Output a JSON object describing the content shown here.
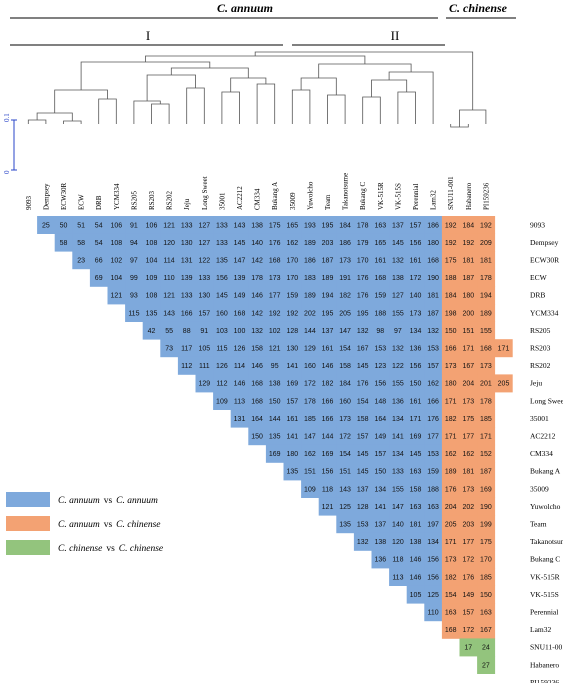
{
  "groups": {
    "annuum": "C. annuum",
    "chinense": "C. chinense",
    "clade1": "I",
    "clade2": "II"
  },
  "scale_bar": {
    "top_label": "0.1",
    "bottom_label": "0"
  },
  "accessions": [
    "9093",
    "Dempsey",
    "ECW30R",
    "ECW",
    "DRB",
    "YCM334",
    "RS205",
    "RS203",
    "RS202",
    "Jeju",
    "Long Sweet",
    "35001",
    "AC2212",
    "CM334",
    "Bukang A",
    "35009",
    "Yuwolcho",
    "Team",
    "Takanotsume",
    "Bukang C",
    "VK-515R",
    "VK-515S",
    "Perennial",
    "Lam32",
    "SNU11-001",
    "Habanero",
    "PI159236"
  ],
  "distance_rows": [
    [
      25,
      50,
      51,
      54,
      106,
      91,
      106,
      121,
      133,
      127,
      133,
      143,
      138,
      175,
      165,
      193,
      195,
      184,
      178,
      163,
      137,
      157,
      186,
      192,
      184,
      192
    ],
    [
      58,
      58,
      54,
      108,
      94,
      108,
      120,
      130,
      127,
      133,
      145,
      140,
      176,
      162,
      189,
      203,
      186,
      179,
      165,
      145,
      156,
      180,
      192,
      192,
      209
    ],
    [
      23,
      66,
      102,
      97,
      104,
      114,
      131,
      122,
      135,
      147,
      142,
      168,
      170,
      186,
      187,
      173,
      170,
      161,
      132,
      161,
      168,
      175,
      181,
      181
    ],
    [
      69,
      104,
      99,
      109,
      110,
      139,
      133,
      156,
      139,
      178,
      173,
      170,
      183,
      189,
      191,
      176,
      168,
      138,
      172,
      190,
      188,
      187,
      178
    ],
    [
      121,
      93,
      108,
      121,
      133,
      130,
      145,
      149,
      146,
      177,
      159,
      189,
      194,
      182,
      176,
      159,
      127,
      140,
      181,
      184,
      180,
      194
    ],
    [
      115,
      135,
      143,
      166,
      157,
      160,
      168,
      142,
      192,
      192,
      202,
      195,
      205,
      195,
      188,
      155,
      173,
      187,
      198,
      200,
      189
    ],
    [
      42,
      55,
      88,
      91,
      103,
      100,
      132,
      102,
      128,
      144,
      137,
      147,
      132,
      98,
      97,
      134,
      132,
      150,
      151,
      155
    ],
    [
      73,
      117,
      105,
      115,
      126,
      158,
      121,
      130,
      129,
      161,
      154,
      167,
      153,
      132,
      136,
      153,
      166,
      171,
      168,
      171
    ],
    [
      112,
      111,
      126,
      114,
      146,
      95,
      141,
      160,
      146,
      158,
      145,
      123,
      122,
      156,
      157,
      173,
      167,
      173
    ],
    [
      129,
      112,
      146,
      168,
      138,
      169,
      172,
      182,
      184,
      176,
      156,
      155,
      150,
      162,
      180,
      204,
      201,
      205
    ],
    [
      109,
      113,
      168,
      150,
      157,
      178,
      166,
      160,
      154,
      148,
      136,
      161,
      166,
      171,
      173,
      178
    ],
    [
      131,
      164,
      144,
      161,
      185,
      166,
      173,
      158,
      164,
      134,
      171,
      176,
      182,
      175,
      185
    ],
    [
      150,
      135,
      141,
      147,
      144,
      172,
      157,
      149,
      141,
      169,
      177,
      171,
      177,
      171
    ],
    [
      169,
      180,
      162,
      169,
      154,
      145,
      157,
      134,
      145,
      153,
      162,
      162,
      152
    ],
    [
      135,
      151,
      156,
      151,
      145,
      150,
      133,
      163,
      159,
      189,
      181,
      187
    ],
    [
      109,
      118,
      143,
      137,
      134,
      155,
      158,
      188,
      176,
      173,
      169
    ],
    [
      121,
      125,
      128,
      141,
      147,
      163,
      163,
      204,
      202,
      190
    ],
    [
      135,
      153,
      137,
      140,
      181,
      197,
      205,
      203,
      199
    ],
    [
      132,
      138,
      120,
      138,
      134,
      171,
      177,
      175
    ],
    [
      136,
      118,
      146,
      156,
      173,
      172,
      170
    ],
    [
      113,
      146,
      156,
      182,
      176,
      185
    ],
    [
      105,
      125,
      154,
      149,
      150
    ],
    [
      110,
      163,
      157,
      163
    ],
    [
      168,
      172,
      167
    ],
    [
      17,
      24
    ],
    [
      27
    ]
  ],
  "colors": {
    "annuum_annuum": "#7ea9dc",
    "annuum_chinense": "#f3a273",
    "chinense_chinense": "#93c47d"
  },
  "legend": [
    {
      "key": "annuum_annuum",
      "a": "C. annuum",
      "vs": "vs",
      "b": "C. annuum"
    },
    {
      "key": "annuum_chinense",
      "a": "C. annuum",
      "vs": "vs",
      "b": "C. chinense"
    },
    {
      "key": "chinense_chinense",
      "a": "C. chinense",
      "vs": "vs",
      "b": "C. chinense"
    }
  ]
}
